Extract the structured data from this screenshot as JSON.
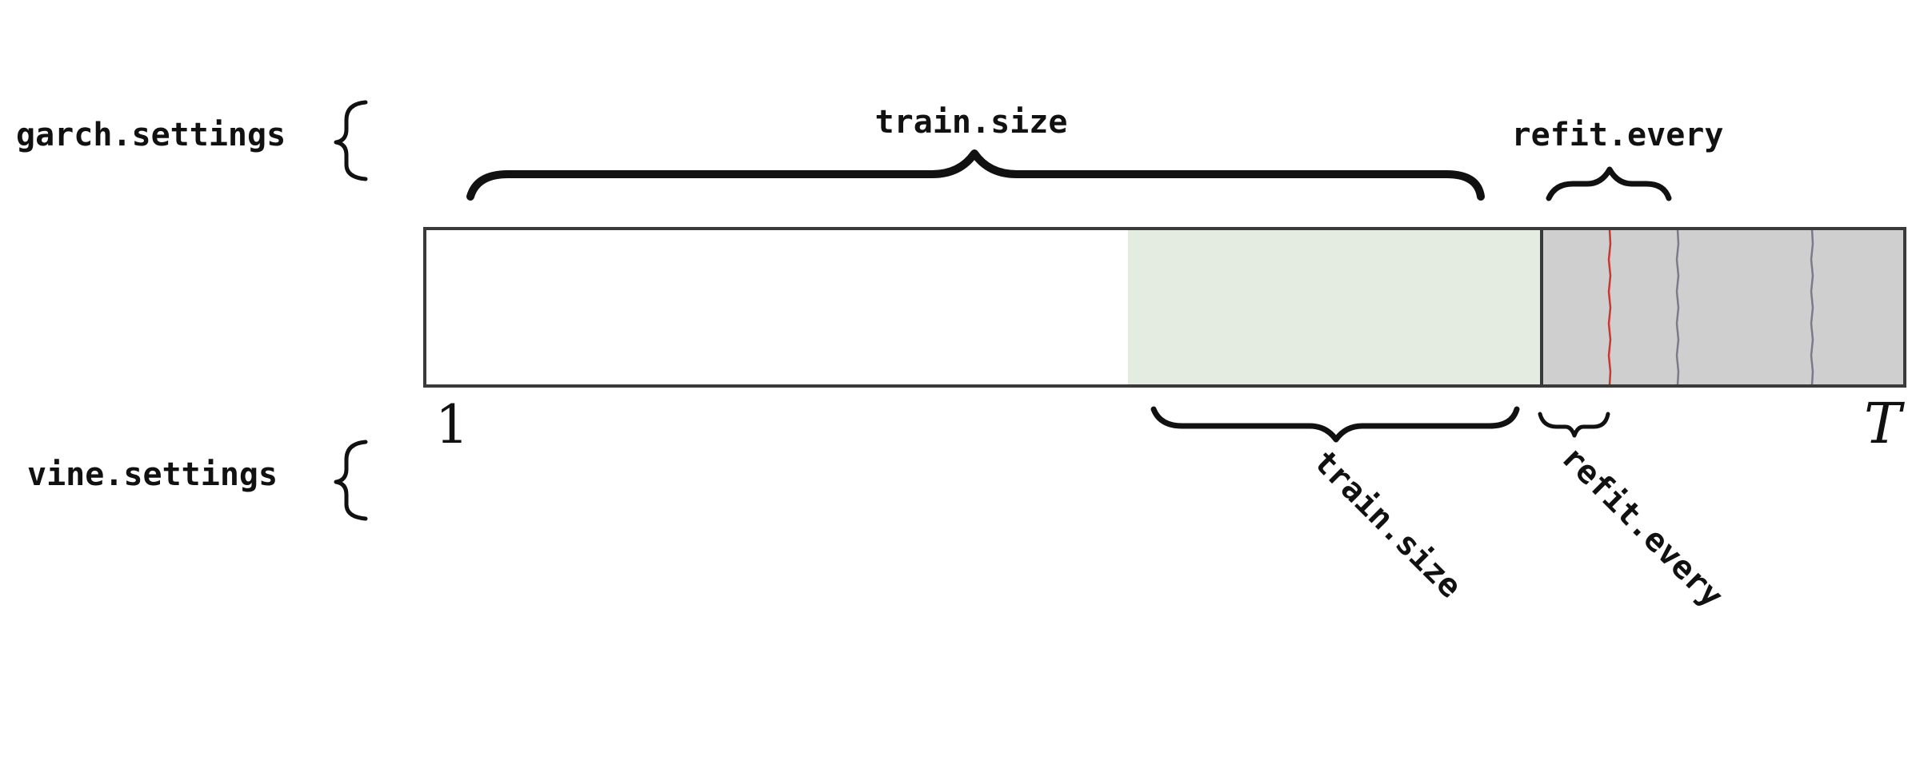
{
  "garch": {
    "label": "garch.settings",
    "train_label": "train.size",
    "refit_label": "refit.every"
  },
  "vine": {
    "label": "vine.settings",
    "train_label": "train.size",
    "refit_label": "refit.every"
  },
  "axis": {
    "start_label": "1",
    "end_label": "T"
  },
  "colors": {
    "outline": "#3a3a3a",
    "train_region": "#e4ebe0",
    "test_region": "#cfcfcf",
    "refit_red": "#c8382e",
    "refit_gray": "#7a7a8a"
  }
}
